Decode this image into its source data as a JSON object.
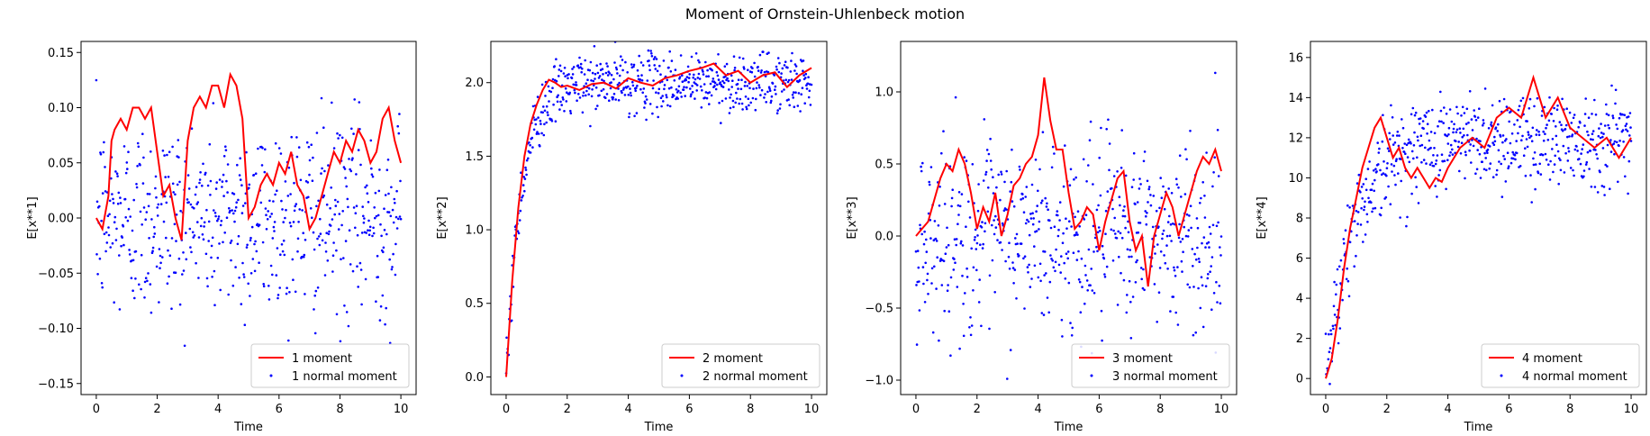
{
  "figure": {
    "suptitle": "Moment of Ornstein-Uhlenbeck motion"
  },
  "chart_data": [
    {
      "type": "line",
      "xlabel": "Time",
      "ylabel": "E[x**1]",
      "xlim": [
        -0.5,
        10.5
      ],
      "ylim": [
        -0.16,
        0.16
      ],
      "xticks": [
        0,
        2,
        4,
        6,
        8,
        10
      ],
      "xtick_labels": [
        "0",
        "2",
        "4",
        "6",
        "8",
        "10"
      ],
      "yticks": [
        -0.15,
        -0.1,
        -0.05,
        0.0,
        0.05,
        0.1,
        0.15
      ],
      "ytick_labels": [
        "−0.15",
        "−0.10",
        "−0.05",
        "0.00",
        "0.05",
        "0.10",
        "0.15"
      ],
      "legend_position": "lower-right",
      "series": [
        {
          "name": "1 moment",
          "kind": "line",
          "color": "#ff0000",
          "x": [
            0,
            0.2,
            0.4,
            0.5,
            0.6,
            0.8,
            1.0,
            1.2,
            1.4,
            1.6,
            1.8,
            2.0,
            2.2,
            2.4,
            2.6,
            2.8,
            3.0,
            3.2,
            3.4,
            3.6,
            3.8,
            4.0,
            4.2,
            4.4,
            4.6,
            4.8,
            5.0,
            5.2,
            5.4,
            5.6,
            5.8,
            6.0,
            6.2,
            6.4,
            6.6,
            6.8,
            7.0,
            7.2,
            7.4,
            7.6,
            7.8,
            8.0,
            8.2,
            8.4,
            8.6,
            8.8,
            9.0,
            9.2,
            9.4,
            9.6,
            9.8,
            10.0
          ],
          "y": [
            0.0,
            -0.01,
            0.02,
            0.07,
            0.08,
            0.09,
            0.08,
            0.1,
            0.1,
            0.09,
            0.1,
            0.06,
            0.02,
            0.03,
            0.0,
            -0.02,
            0.07,
            0.1,
            0.11,
            0.1,
            0.12,
            0.12,
            0.1,
            0.13,
            0.12,
            0.09,
            0.0,
            0.01,
            0.03,
            0.04,
            0.03,
            0.05,
            0.04,
            0.06,
            0.03,
            0.02,
            -0.01,
            0.0,
            0.02,
            0.04,
            0.06,
            0.05,
            0.07,
            0.06,
            0.08,
            0.07,
            0.05,
            0.06,
            0.09,
            0.1,
            0.07,
            0.05
          ]
        },
        {
          "name": "1 normal moment",
          "kind": "scatter",
          "color": "#0000ff",
          "n_points": 600,
          "y_mean": 0.0,
          "y_std": 0.045
        }
      ]
    },
    {
      "type": "line",
      "xlabel": "Time",
      "ylabel": "E[x**2]",
      "xlim": [
        -0.5,
        10.5
      ],
      "ylim": [
        -0.12,
        2.28
      ],
      "xticks": [
        0,
        2,
        4,
        6,
        8,
        10
      ],
      "xtick_labels": [
        "0",
        "2",
        "4",
        "6",
        "8",
        "10"
      ],
      "yticks": [
        0.0,
        0.5,
        1.0,
        1.5,
        2.0
      ],
      "ytick_labels": [
        "0.0",
        "0.5",
        "1.0",
        "1.5",
        "2.0"
      ],
      "legend_position": "lower-right",
      "series": [
        {
          "name": "2 moment",
          "kind": "line",
          "color": "#ff0000",
          "x": [
            0,
            0.2,
            0.4,
            0.6,
            0.8,
            1.0,
            1.2,
            1.4,
            1.6,
            1.8,
            2.0,
            2.4,
            2.8,
            3.2,
            3.6,
            4.0,
            4.4,
            4.8,
            5.2,
            5.6,
            6.0,
            6.4,
            6.8,
            7.2,
            7.6,
            8.0,
            8.4,
            8.8,
            9.2,
            9.6,
            10.0
          ],
          "y": [
            0.0,
            0.65,
            1.15,
            1.5,
            1.72,
            1.85,
            1.95,
            2.02,
            2.0,
            1.97,
            1.98,
            1.95,
            1.99,
            2.0,
            1.96,
            2.03,
            2.0,
            1.98,
            2.03,
            2.05,
            2.08,
            2.1,
            2.13,
            2.05,
            2.08,
            2.0,
            2.05,
            2.07,
            1.97,
            2.05,
            2.1
          ]
        },
        {
          "name": "2 normal moment",
          "kind": "scatter",
          "color": "#0000ff",
          "n_points": 600,
          "y_mean": 2.0,
          "y_std": 0.1
        }
      ]
    },
    {
      "type": "line",
      "xlabel": "Time",
      "ylabel": "E[x**3]",
      "xlim": [
        -0.5,
        10.5
      ],
      "ylim": [
        -1.1,
        1.35
      ],
      "xticks": [
        0,
        2,
        4,
        6,
        8,
        10
      ],
      "xtick_labels": [
        "0",
        "2",
        "4",
        "6",
        "8",
        "10"
      ],
      "yticks": [
        -1.0,
        -0.5,
        0.0,
        0.5,
        1.0
      ],
      "ytick_labels": [
        "−1.0",
        "−0.5",
        "0.0",
        "0.5",
        "1.0"
      ],
      "legend_position": "lower-right",
      "series": [
        {
          "name": "3 moment",
          "kind": "line",
          "color": "#ff0000",
          "x": [
            0,
            0.2,
            0.4,
            0.6,
            0.8,
            1.0,
            1.2,
            1.4,
            1.6,
            1.8,
            2.0,
            2.2,
            2.4,
            2.6,
            2.8,
            3.0,
            3.2,
            3.4,
            3.6,
            3.8,
            4.0,
            4.2,
            4.4,
            4.6,
            4.8,
            5.0,
            5.2,
            5.4,
            5.6,
            5.8,
            6.0,
            6.2,
            6.4,
            6.6,
            6.8,
            7.0,
            7.2,
            7.4,
            7.6,
            7.8,
            8.0,
            8.2,
            8.4,
            8.6,
            8.8,
            9.0,
            9.2,
            9.4,
            9.6,
            9.8,
            10.0
          ],
          "y": [
            0.0,
            0.05,
            0.1,
            0.25,
            0.4,
            0.5,
            0.45,
            0.6,
            0.5,
            0.3,
            0.05,
            0.2,
            0.1,
            0.3,
            0.0,
            0.15,
            0.35,
            0.4,
            0.5,
            0.55,
            0.7,
            1.1,
            0.8,
            0.6,
            0.6,
            0.3,
            0.05,
            0.1,
            0.2,
            0.15,
            -0.1,
            0.1,
            0.25,
            0.4,
            0.45,
            0.1,
            -0.1,
            0.0,
            -0.35,
            0.0,
            0.15,
            0.3,
            0.2,
            0.0,
            0.15,
            0.3,
            0.45,
            0.55,
            0.5,
            0.6,
            0.45
          ]
        },
        {
          "name": "3 normal moment",
          "kind": "scatter",
          "color": "#0000ff",
          "n_points": 600,
          "y_mean": 0.0,
          "y_std": 0.33
        }
      ]
    },
    {
      "type": "line",
      "xlabel": "Time",
      "ylabel": "E[x**4]",
      "xlim": [
        -0.5,
        10.5
      ],
      "ylim": [
        -0.8,
        16.8
      ],
      "xticks": [
        0,
        2,
        4,
        6,
        8,
        10
      ],
      "xtick_labels": [
        "0",
        "2",
        "4",
        "6",
        "8",
        "10"
      ],
      "yticks": [
        0,
        2,
        4,
        6,
        8,
        10,
        12,
        14,
        16
      ],
      "ytick_labels": [
        "0",
        "2",
        "4",
        "6",
        "8",
        "10",
        "12",
        "14",
        "16"
      ],
      "legend_position": "lower-right",
      "series": [
        {
          "name": "4 moment",
          "kind": "line",
          "color": "#ff0000",
          "x": [
            0,
            0.2,
            0.4,
            0.6,
            0.8,
            1.0,
            1.2,
            1.4,
            1.6,
            1.8,
            2.0,
            2.2,
            2.4,
            2.6,
            2.8,
            3.0,
            3.2,
            3.4,
            3.6,
            3.8,
            4.0,
            4.4,
            4.8,
            5.2,
            5.6,
            6.0,
            6.4,
            6.8,
            7.2,
            7.6,
            8.0,
            8.4,
            8.8,
            9.2,
            9.6,
            10.0
          ],
          "y": [
            0.0,
            1.0,
            3.0,
            5.5,
            7.5,
            9.0,
            10.5,
            11.5,
            12.5,
            13.0,
            12.0,
            11.0,
            11.5,
            10.5,
            10.0,
            10.5,
            10.0,
            9.5,
            10.0,
            9.8,
            10.5,
            11.5,
            12.0,
            11.5,
            13.0,
            13.5,
            13.0,
            15.0,
            13.0,
            14.0,
            12.5,
            12.0,
            11.5,
            12.0,
            11.0,
            12.0
          ]
        },
        {
          "name": "4 normal moment",
          "kind": "scatter",
          "color": "#0000ff",
          "n_points": 600,
          "y_mean": 12.0,
          "y_std": 1.2
        }
      ]
    }
  ]
}
